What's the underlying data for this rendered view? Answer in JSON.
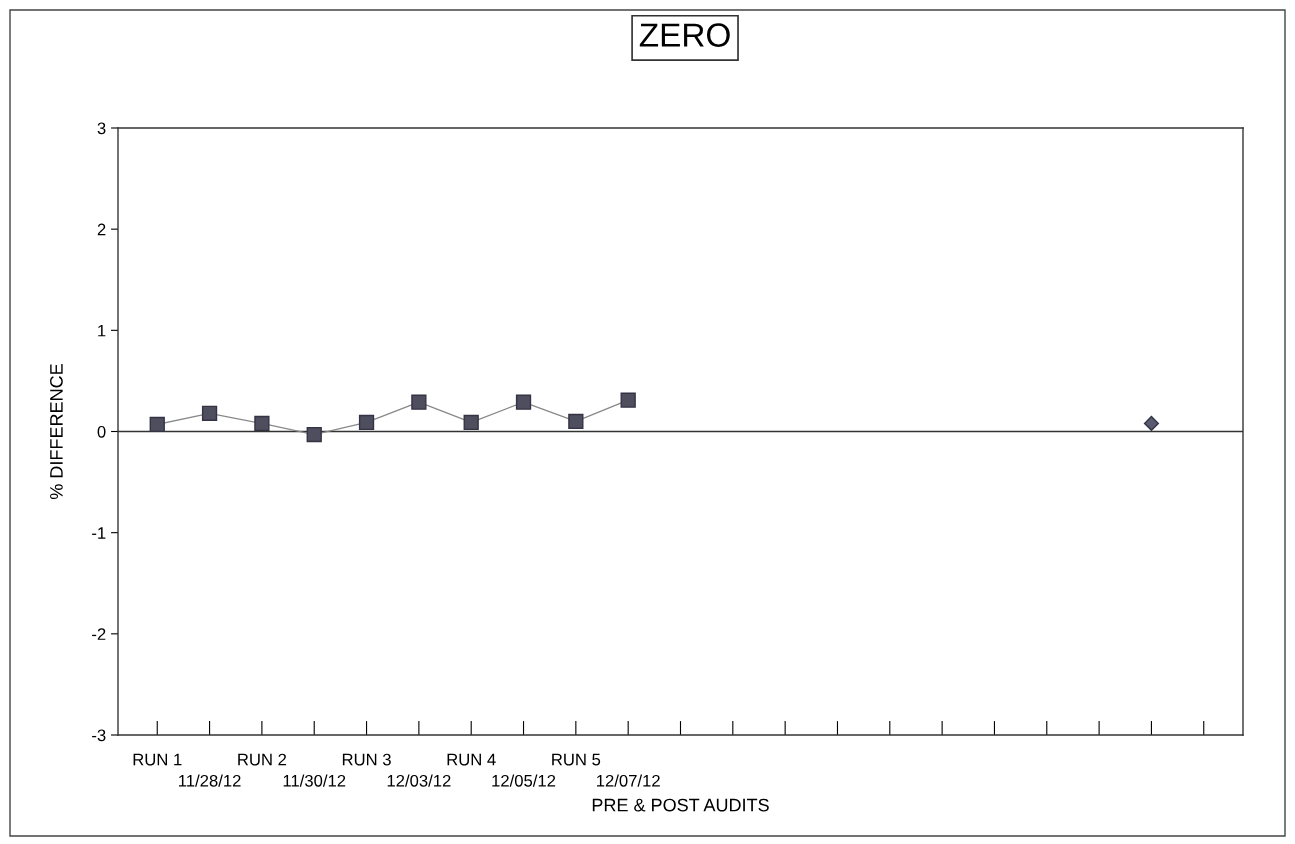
{
  "chart_data": {
    "type": "line",
    "title": "ZERO",
    "xlabel": "PRE & POST AUDITS",
    "ylabel": "% DIFFERENCE",
    "categories": [
      "RUN 1",
      "11/28/12",
      "RUN 2",
      "11/30/12",
      "RUN 3",
      "12/03/12",
      "RUN 4",
      "12/05/12",
      "RUN 5",
      "12/07/12",
      null,
      null,
      null,
      null,
      null,
      null,
      null,
      null,
      null,
      null,
      null
    ],
    "series": [
      {
        "marker": "square",
        "color": "#4e4e5e",
        "values": [
          0.07,
          0.18,
          0.08,
          -0.03,
          0.09,
          0.29,
          0.09,
          0.29,
          0.1,
          0.31,
          null,
          null,
          null,
          null,
          null,
          null,
          null,
          null,
          null,
          null,
          null
        ]
      },
      {
        "type": "scatter",
        "marker": "diamond",
        "color": "#5a5a70",
        "values": [
          null,
          null,
          null,
          null,
          null,
          null,
          null,
          null,
          null,
          null,
          null,
          null,
          null,
          null,
          null,
          null,
          null,
          null,
          null,
          0.08,
          null
        ]
      }
    ],
    "ylim": [
      -3,
      3
    ],
    "yticks": [
      -3,
      -2,
      -1,
      0,
      1,
      2,
      3
    ],
    "ref_lines": [
      {
        "axis": "y",
        "value": 0,
        "color": "#333333"
      }
    ],
    "grid": false,
    "legend": false
  }
}
